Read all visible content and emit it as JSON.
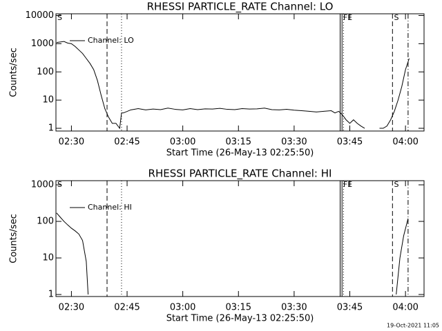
{
  "chart_data": [
    {
      "type": "line",
      "title": "RHESSI PARTICLE_RATE Channel: LO",
      "xlabel": "Start Time (26-May-13 02:25:50)",
      "ylabel": "Counts/sec",
      "log_y": true,
      "legend": "upper left",
      "color": "#000000",
      "xlim": [
        145.83,
        245
      ],
      "ylim": [
        0.8,
        11500
      ],
      "xticks": [
        {
          "value": 150,
          "label": "02:30"
        },
        {
          "value": 165,
          "label": "02:45"
        },
        {
          "value": 180,
          "label": "03:00"
        },
        {
          "value": 195,
          "label": "03:15"
        },
        {
          "value": 210,
          "label": "03:30"
        },
        {
          "value": 225,
          "label": "03:45"
        },
        {
          "value": 240,
          "label": "04:00"
        }
      ],
      "yticks": [
        1,
        10,
        100,
        1000,
        10000
      ],
      "vlines": [
        {
          "x": 159.6,
          "style": "dashed"
        },
        {
          "x": 163.5,
          "style": "dotted"
        },
        {
          "x": 222.4,
          "style": "solid"
        },
        {
          "x": 222.9,
          "style": "solid"
        },
        {
          "x": 223.3,
          "style": "dotted"
        },
        {
          "x": 236.5,
          "style": "dashed"
        },
        {
          "x": 240.7,
          "style": "dashdot"
        }
      ],
      "annotations": [
        {
          "x": 146.2,
          "text": "S"
        },
        {
          "x": 223.2,
          "text": "FE"
        },
        {
          "x": 236.9,
          "text": "S"
        }
      ],
      "x": [
        146,
        147,
        148,
        149,
        150,
        151,
        152,
        153,
        154,
        155,
        156,
        157,
        158,
        159,
        160,
        161,
        162,
        163,
        163.5,
        164,
        166,
        168,
        170,
        172,
        174,
        176,
        178,
        180,
        182,
        184,
        186,
        188,
        190,
        192,
        194,
        196,
        198,
        200,
        202,
        204,
        206,
        208,
        210,
        212,
        214,
        216,
        218,
        220,
        221,
        222,
        223,
        224,
        225,
        226,
        227,
        228,
        229,
        230,
        231,
        232,
        233,
        234,
        235,
        236,
        237,
        238,
        239,
        240,
        241
      ],
      "series": [
        {
          "name": "Channel: LO",
          "color": "#000000",
          "values": [
            1100,
            1150,
            1200,
            1050,
            1000,
            800,
            600,
            450,
            300,
            200,
            120,
            50,
            15,
            5,
            2.5,
            1.5,
            1.5,
            1,
            3.5,
            3.5,
            4.5,
            5,
            4.5,
            4.8,
            4.6,
            5.2,
            4.7,
            4.5,
            5,
            4.6,
            4.9,
            4.8,
            5.1,
            4.7,
            4.6,
            5,
            4.8,
            4.9,
            5.2,
            4.6,
            4.5,
            4.7,
            4.4,
            4.2,
            4,
            3.8,
            4,
            4.2,
            3.5,
            4,
            3,
            2,
            1.5,
            2,
            1.5,
            1.2,
            1,
            null,
            null,
            null,
            1,
            1,
            1.2,
            2,
            4,
            10,
            30,
            120,
            300
          ]
        }
      ]
    },
    {
      "type": "line",
      "title": "RHESSI PARTICLE_RATE Channel: HI",
      "xlabel": "Start Time (26-May-13 02:25:50)",
      "ylabel": "Counts/sec",
      "log_y": true,
      "legend": "upper left",
      "color": "#000000",
      "xlim": [
        145.83,
        245
      ],
      "ylim": [
        0.88,
        1300
      ],
      "xticks": [
        {
          "value": 150,
          "label": "02:30"
        },
        {
          "value": 165,
          "label": "02:45"
        },
        {
          "value": 180,
          "label": "03:00"
        },
        {
          "value": 195,
          "label": "03:15"
        },
        {
          "value": 210,
          "label": "03:30"
        },
        {
          "value": 225,
          "label": "03:45"
        },
        {
          "value": 240,
          "label": "04:00"
        }
      ],
      "yticks": [
        1,
        10,
        100,
        1000
      ],
      "vlines": [
        {
          "x": 159.6,
          "style": "dashed"
        },
        {
          "x": 163.5,
          "style": "dotted"
        },
        {
          "x": 222.4,
          "style": "solid"
        },
        {
          "x": 222.9,
          "style": "solid"
        },
        {
          "x": 223.3,
          "style": "dotted"
        },
        {
          "x": 236.5,
          "style": "dashed"
        },
        {
          "x": 240.7,
          "style": "dashdot"
        }
      ],
      "annotations": [
        {
          "x": 146.2,
          "text": "S"
        },
        {
          "x": 223.2,
          "text": "FE"
        },
        {
          "x": 236.9,
          "text": "S"
        }
      ],
      "x": [
        146,
        147,
        148,
        149,
        150,
        151,
        152,
        153,
        154,
        154.5,
        200,
        237.5,
        238.5,
        239.5,
        240.7
      ],
      "series": [
        {
          "name": "Channel: HI",
          "color": "#000000",
          "values": [
            170,
            130,
            100,
            80,
            65,
            55,
            45,
            30,
            8,
            1,
            null,
            1,
            10,
            40,
            120
          ]
        }
      ]
    }
  ],
  "footer": "19-Oct-2021 11:05"
}
